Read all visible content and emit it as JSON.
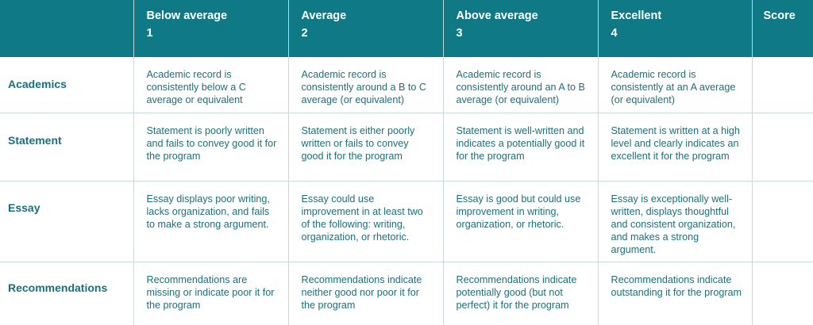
{
  "header": {
    "corner": "",
    "columns": [
      {
        "label": "Below average",
        "num": "1"
      },
      {
        "label": "Average",
        "num": "2"
      },
      {
        "label": "Above average",
        "num": "3"
      },
      {
        "label": "Excellent",
        "num": "4"
      },
      {
        "label": "Score",
        "num": ""
      }
    ]
  },
  "rows": [
    {
      "label": "Academics",
      "cells": [
        "Academic record is consistently below a C average or equivalent",
        "Academic record is consistently around a B to C average (or equivalent)",
        "Academic record is consistently around an A to B average (or equivalent)",
        "Academic record is consistently at an A average (or equivalent)"
      ],
      "score": ""
    },
    {
      "label": "Statement",
      "cells": [
        "Statement is poorly written and fails to convey good it for the program",
        "Statement is either poorly written or fails to convey good it for the program",
        "Statement is well-written and indicates a potentially good it for the program",
        "Statement is written at a high level and clearly indicates an excellent it for the program"
      ],
      "score": ""
    },
    {
      "label": "Essay",
      "cells": [
        "Essay displays poor writing, lacks organization, and fails to make a strong argument.",
        "Essay could use improvement in at least two of the following: writing, organization, or rhetoric.",
        "Essay is good but could use improvement in writing, organization, or rhetoric.",
        "Essay is exceptionally well-written, displays thoughtful and consistent organization, and makes a strong argument."
      ],
      "score": ""
    },
    {
      "label": "Recommendations",
      "cells": [
        "Recommendations are missing or indicate poor it for the program",
        "Recommendations indicate neither good nor poor it for the program",
        "Recommendations indicate potentially good (but not perfect) it for the program",
        "Recommendations indicate outstanding it for the program"
      ],
      "score": ""
    }
  ]
}
